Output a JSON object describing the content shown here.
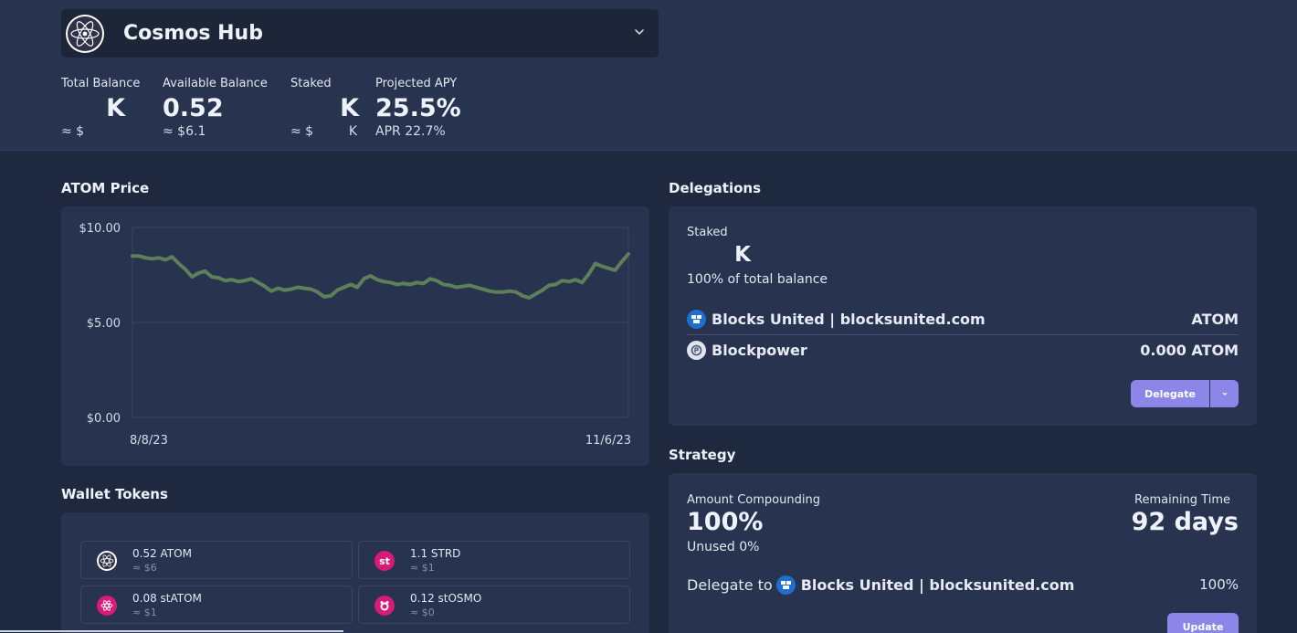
{
  "header": {
    "chain_name": "Cosmos Hub",
    "stats": {
      "total_balance": {
        "label": "Total Balance",
        "value": "K",
        "usd": "≈ $"
      },
      "available_balance": {
        "label": "Available Balance",
        "value": "0.52",
        "usd": "≈ $6.1"
      },
      "staked": {
        "label": "Staked",
        "value": "K",
        "usd": "≈ $",
        "usd_suffix": "K"
      },
      "projected_apy": {
        "label": "Projected APY",
        "value": "25.5%",
        "sub": "APR 22.7%"
      }
    }
  },
  "price": {
    "title": "ATOM Price"
  },
  "chart_data": {
    "type": "line",
    "title": "ATOM Price",
    "x_start_label": "8/8/23",
    "x_end_label": "11/6/23",
    "y_ticks": [
      "$10.00",
      "$5.00",
      "$0.00"
    ],
    "ylim": [
      0,
      10
    ],
    "grid": true,
    "series": [
      {
        "color": "#5f7f5a",
        "values": [
          8.5,
          8.5,
          8.4,
          8.35,
          8.4,
          8.3,
          8.45,
          8.1,
          7.8,
          7.4,
          7.6,
          7.7,
          7.4,
          7.35,
          7.2,
          7.25,
          7.15,
          7.2,
          7.3,
          7.1,
          6.9,
          6.65,
          6.8,
          6.7,
          6.75,
          6.85,
          6.8,
          6.75,
          6.6,
          6.35,
          6.4,
          6.7,
          6.85,
          7.0,
          6.85,
          7.3,
          7.45,
          7.25,
          7.15,
          7.1,
          7.0,
          7.05,
          7.0,
          7.1,
          7.05,
          7.3,
          7.2,
          7.0,
          6.95,
          6.85,
          6.9,
          6.95,
          6.85,
          6.75,
          6.65,
          6.6,
          6.6,
          6.65,
          6.6,
          6.4,
          6.3,
          6.5,
          6.7,
          6.95,
          7.0,
          7.2,
          7.15,
          7.25,
          7.1,
          7.55,
          8.1,
          7.95,
          7.85,
          7.75,
          8.2,
          8.6
        ]
      }
    ]
  },
  "wallet": {
    "title": "Wallet Tokens",
    "tokens": [
      {
        "name": "0.52 ATOM",
        "usd": "≈ $6",
        "icon": "atom-icon",
        "color": "#ffffff"
      },
      {
        "name": "1.1 STRD",
        "usd": "≈ $1",
        "icon": "stride-icon",
        "color": "#d81b76",
        "glyph": "st"
      },
      {
        "name": "0.08 stATOM",
        "usd": "≈ $1",
        "icon": "statom-icon",
        "color": "#d81b76"
      },
      {
        "name": "0.12 stOSMO",
        "usd": "≈ $0",
        "icon": "stosmo-icon",
        "color": "#d81b76"
      }
    ]
  },
  "delegations": {
    "title": "Delegations",
    "staked_label": "Staked",
    "staked_value": "K",
    "share": "100% of total balance",
    "validators": [
      {
        "name": "Blocks United | blocksunited.com",
        "amount": "ATOM",
        "icon": "blocks-united-icon"
      },
      {
        "name": "Blockpower",
        "amount": "0.000 ATOM",
        "icon": "blockpower-icon"
      }
    ],
    "delegate_label": "Delegate"
  },
  "strategy": {
    "title": "Strategy",
    "amount_label": "Amount Compounding",
    "amount_value": "100%",
    "unused": "Unused 0%",
    "remaining_label": "Remaining Time",
    "remaining_value": "92 days",
    "delegate_to_label": "Delegate to",
    "delegate_to_validator": "Blocks United | blocksunited.com",
    "delegate_to_pct": "100%",
    "update_label": "Update"
  }
}
